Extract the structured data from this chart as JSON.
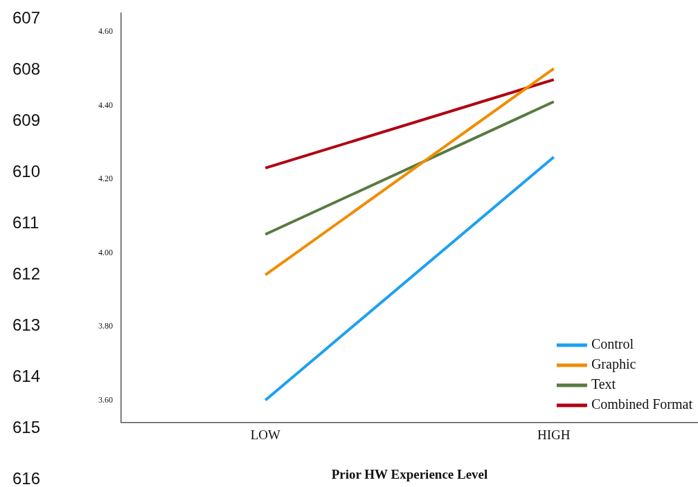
{
  "chart_data": {
    "type": "line",
    "xlabel": "Prior HW Experience Level",
    "categories": [
      "LOW",
      "HIGH"
    ],
    "series": [
      {
        "name": "Control",
        "color": "#1ea0f0",
        "values": [
          3.6,
          4.26
        ]
      },
      {
        "name": "Graphic",
        "color": "#f08c00",
        "values": [
          3.94,
          4.5
        ]
      },
      {
        "name": "Text",
        "color": "#587a40",
        "values": [
          4.05,
          4.41
        ]
      },
      {
        "name": "Combined Format",
        "color": "#b00010",
        "values": [
          4.23,
          4.47
        ]
      }
    ],
    "ylim": [
      3.54,
      4.65
    ],
    "yticks": [
      {
        "value": 3.6,
        "label": "3.60"
      },
      {
        "value": 3.8,
        "label": "3.80"
      },
      {
        "value": 4.0,
        "label": "4.00"
      },
      {
        "value": 4.2,
        "label": "4.20"
      },
      {
        "value": 4.4,
        "label": "4.40"
      },
      {
        "value": 4.6,
        "label": "4.60"
      }
    ],
    "grid": false,
    "legend": "bottom right",
    "marker": "none",
    "line_style": "solid",
    "annotations": [
      "607",
      "608",
      "609",
      "610",
      "611",
      "612",
      "613",
      "614",
      "615",
      "616"
    ]
  }
}
